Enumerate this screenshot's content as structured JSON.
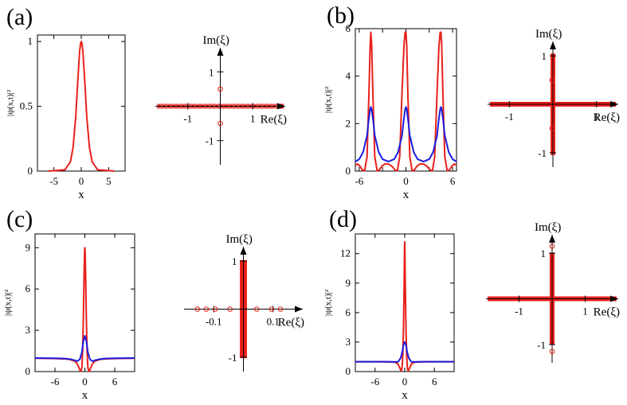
{
  "figure": {
    "ylabel": "|ψ(x,t)|²",
    "re_label": "Re(ξ)",
    "im_label": "Im(ξ)"
  },
  "chart_data": [
    {
      "type": "line",
      "panel": "(a)",
      "xlabel": "x",
      "ylabel": "|ψ(x,t)|²",
      "xlim": [
        -8,
        8
      ],
      "ylim": [
        0,
        1.05
      ],
      "xticks": [
        -5,
        0,
        5
      ],
      "xtick_labels": [
        "-5",
        "0",
        "5"
      ],
      "yticks": [
        0,
        0.5,
        1
      ],
      "ytick_labels": [
        "0",
        "0.5",
        "1"
      ],
      "series": [
        {
          "name": "red",
          "color": "#e8201a",
          "x": [
            -6,
            -3,
            -2,
            -1.5,
            -1,
            -0.7,
            -0.5,
            -0.3,
            -0.15,
            0,
            0.15,
            0.3,
            0.5,
            0.7,
            1,
            1.5,
            2,
            3,
            6
          ],
          "y": [
            0,
            0.01,
            0.07,
            0.18,
            0.42,
            0.65,
            0.79,
            0.92,
            0.98,
            1.0,
            0.98,
            0.92,
            0.79,
            0.65,
            0.42,
            0.18,
            0.07,
            0.01,
            0
          ]
        }
      ]
    },
    {
      "type": "scatter",
      "panel": "(a)",
      "xlabel": "Re(ξ)",
      "ylabel": "Im(ξ)",
      "xlim": [
        -2,
        2
      ],
      "ylim": [
        -1.7,
        1.7
      ],
      "xticks": [
        -1,
        1
      ],
      "xtick_labels": [
        "-1",
        "1"
      ],
      "yticks": [
        1,
        -1
      ],
      "ytick_labels": [
        "1",
        "-1"
      ],
      "band": {
        "axis": "real",
        "range": [
          -1.95,
          1.95
        ]
      },
      "points": [
        {
          "re": 0,
          "im": 0.5
        },
        {
          "re": 0,
          "im": -0.5
        }
      ]
    },
    {
      "type": "line",
      "panel": "(b)",
      "xlabel": "x",
      "ylabel": "|ψ(x,t)|²",
      "xlim": [
        -6.5,
        6.5
      ],
      "ylim": [
        0,
        6
      ],
      "xticks": [
        -6,
        -3,
        0,
        3,
        6
      ],
      "xtick_labels": [
        "-6",
        "",
        "0",
        "",
        "6"
      ],
      "yticks": [
        0,
        2,
        4,
        6
      ],
      "ytick_labels": [
        "0",
        "2",
        "4",
        "6"
      ],
      "series": [
        {
          "name": "red",
          "color": "#e8201a",
          "x": [
            -6.5,
            -6.2,
            -5.9,
            -5.6,
            -5.3,
            -5.0,
            -4.75,
            -4.6,
            -4.5,
            -4.4,
            -4.25,
            -4.0,
            -3.7,
            -3.4,
            -3.1,
            -2.7,
            -2.25,
            -1.8,
            -1.4,
            -1.1,
            -0.8,
            -0.5,
            -0.25,
            -0.1,
            0,
            0.1,
            0.25,
            0.5,
            0.8,
            1.1,
            1.4,
            1.8,
            2.25,
            2.7,
            3.1,
            3.4,
            3.7,
            4.0,
            4.25,
            4.4,
            4.5,
            4.6,
            4.75,
            5.0,
            5.3,
            5.6,
            5.9,
            6.2,
            6.5
          ],
          "y": [
            0.25,
            0.3,
            0.2,
            0.05,
            0.01,
            0.6,
            3.3,
            5.3,
            5.85,
            5.3,
            3.3,
            0.6,
            0.01,
            0.05,
            0.2,
            0.3,
            0.3,
            0.2,
            0.05,
            0.01,
            0.6,
            3.3,
            5.3,
            5.85,
            5.85,
            5.3,
            3.3,
            0.6,
            0.01,
            0.05,
            0.2,
            0.3,
            0.3,
            0.2,
            0.05,
            0.01,
            0.6,
            3.3,
            5.3,
            5.85,
            5.85,
            5.3,
            3.3,
            0.6,
            0.01,
            0.05,
            0.2,
            0.3,
            0.25
          ]
        },
        {
          "name": "blue",
          "color": "#1c1ce0",
          "x": [
            -6.5,
            -6.0,
            -5.5,
            -5.0,
            -4.8,
            -4.6,
            -4.5,
            -4.4,
            -4.2,
            -4.0,
            -3.5,
            -3.0,
            -2.25,
            -1.5,
            -1.0,
            -0.5,
            -0.3,
            -0.1,
            0,
            0.1,
            0.3,
            0.5,
            1.0,
            1.5,
            2.25,
            3.0,
            3.5,
            4.0,
            4.2,
            4.4,
            4.5,
            4.6,
            4.8,
            5.0,
            5.5,
            6.0,
            6.5
          ],
          "y": [
            0.4,
            0.5,
            0.8,
            1.5,
            2.1,
            2.6,
            2.7,
            2.6,
            2.1,
            1.5,
            0.8,
            0.5,
            0.4,
            0.5,
            0.8,
            1.5,
            2.1,
            2.6,
            2.7,
            2.6,
            2.1,
            1.5,
            0.8,
            0.5,
            0.4,
            0.5,
            0.8,
            1.5,
            2.1,
            2.6,
            2.7,
            2.6,
            2.1,
            1.5,
            0.8,
            0.5,
            0.4
          ]
        }
      ]
    },
    {
      "type": "scatter",
      "panel": "(b)",
      "xlabel": "Re(ξ)",
      "ylabel": "Im(ξ)",
      "xlim": [
        -1.5,
        1.5
      ],
      "ylim": [
        -1.3,
        1.3
      ],
      "xticks": [
        -1,
        1
      ],
      "xtick_labels": [
        "-1",
        "1"
      ],
      "yticks": [
        1,
        -1
      ],
      "ytick_labels": [
        "1",
        "-1"
      ],
      "bands": [
        {
          "axis": "real",
          "range": [
            -1.45,
            1.45
          ]
        },
        {
          "axis": "imag",
          "range": [
            -1.05,
            1.05
          ]
        }
      ],
      "points": [
        {
          "re": -0.02,
          "im": 0.5
        },
        {
          "re": -0.02,
          "im": -0.5
        }
      ]
    },
    {
      "type": "line",
      "panel": "(c)",
      "xlabel": "x",
      "ylabel": "|ψ(x,t)|²",
      "xlim": [
        -10,
        10
      ],
      "ylim": [
        0,
        10
      ],
      "xticks": [
        -6,
        0,
        6
      ],
      "xtick_labels": [
        "-6",
        "0",
        "6"
      ],
      "yticks": [
        0,
        3,
        6,
        9
      ],
      "ytick_labels": [
        "0",
        "3",
        "6",
        "9"
      ],
      "series": [
        {
          "name": "red",
          "color": "#e8201a",
          "x": [
            -10,
            -6,
            -4,
            -3,
            -2,
            -1.5,
            -1.2,
            -1.0,
            -0.8,
            -0.6,
            -0.45,
            -0.3,
            -0.15,
            -0.05,
            0,
            0.05,
            0.15,
            0.3,
            0.45,
            0.6,
            0.8,
            1.0,
            1.2,
            1.5,
            2,
            3,
            4,
            6,
            10
          ],
          "y": [
            0.97,
            0.95,
            0.92,
            0.88,
            0.75,
            0.55,
            0.3,
            0.1,
            0.02,
            0.3,
            1.5,
            3.8,
            7.2,
            8.8,
            9.0,
            8.8,
            7.2,
            3.8,
            1.5,
            0.3,
            0.02,
            0.1,
            0.3,
            0.55,
            0.75,
            0.88,
            0.92,
            0.95,
            0.97
          ]
        },
        {
          "name": "blue",
          "color": "#1c1ce0",
          "x": [
            -10,
            -6,
            -4,
            -3,
            -2,
            -1.5,
            -1.0,
            -0.6,
            -0.3,
            0,
            0.3,
            0.6,
            1.0,
            1.5,
            2,
            3,
            4,
            6,
            10
          ],
          "y": [
            0.98,
            0.97,
            0.95,
            0.9,
            0.82,
            0.75,
            0.9,
            1.4,
            2.2,
            2.6,
            2.2,
            1.4,
            0.9,
            0.75,
            0.82,
            0.9,
            0.95,
            0.97,
            0.98
          ]
        }
      ]
    },
    {
      "type": "scatter",
      "panel": "(c)",
      "xlabel": "Re(ξ)",
      "ylabel": "Im(ξ)",
      "xlim": [
        -0.2,
        0.2
      ],
      "ylim": [
        -1.3,
        1.3
      ],
      "xticks": [
        -0.1,
        0.1
      ],
      "xtick_labels": [
        "-0.1",
        "0.1"
      ],
      "yticks": [
        1,
        -1
      ],
      "ytick_labels": [
        "1",
        "-1"
      ],
      "band": {
        "axis": "imag",
        "range": [
          -1.02,
          1.02
        ],
        "halfwidth_re": 0.012
      },
      "points": [
        {
          "re": -0.155,
          "im": 0
        },
        {
          "re": -0.125,
          "im": 0
        },
        {
          "re": -0.095,
          "im": 0
        },
        {
          "re": -0.045,
          "im": 0
        },
        {
          "re": 0.045,
          "im": 0
        },
        {
          "re": 0.095,
          "im": 0
        },
        {
          "re": 0.125,
          "im": 0
        }
      ]
    },
    {
      "type": "line",
      "panel": "(d)",
      "xlabel": "x",
      "ylabel": "|ψ(x,t)|²",
      "xlim": [
        -10,
        10
      ],
      "ylim": [
        0,
        14
      ],
      "xticks": [
        -6,
        0,
        6
      ],
      "xtick_labels": [
        "-6",
        "0",
        "6"
      ],
      "yticks": [
        0,
        3,
        6,
        9,
        12
      ],
      "ytick_labels": [
        "0",
        "3",
        "6",
        "9",
        "12"
      ],
      "series": [
        {
          "name": "red",
          "color": "#e8201a",
          "x": [
            -10,
            -5,
            -3,
            -2,
            -1.4,
            -1.0,
            -0.75,
            -0.55,
            -0.4,
            -0.25,
            -0.12,
            -0.04,
            0,
            0.04,
            0.12,
            0.25,
            0.4,
            0.55,
            0.75,
            1.0,
            1.4,
            2,
            3,
            5,
            10
          ],
          "y": [
            1.0,
            1.0,
            0.98,
            0.95,
            0.8,
            0.4,
            0.05,
            0.3,
            1.5,
            4.2,
            9.0,
            12.6,
            13.2,
            12.6,
            9.0,
            4.2,
            1.5,
            0.3,
            0.05,
            0.4,
            0.8,
            0.95,
            0.98,
            1.0,
            1.0
          ]
        },
        {
          "name": "blue",
          "color": "#1c1ce0",
          "x": [
            -10,
            -5,
            -3,
            -2,
            -1.3,
            -0.8,
            -0.5,
            -0.25,
            0,
            0.25,
            0.5,
            0.8,
            1.3,
            2,
            3,
            5,
            10
          ],
          "y": [
            1.0,
            1.0,
            1.0,
            0.98,
            1.0,
            1.4,
            2.0,
            2.7,
            3.0,
            2.7,
            2.0,
            1.4,
            1.0,
            0.98,
            1.0,
            1.0,
            1.0
          ]
        }
      ]
    },
    {
      "type": "scatter",
      "panel": "(d)",
      "xlabel": "Re(ξ)",
      "ylabel": "Im(ξ)",
      "xlim": [
        -2,
        2
      ],
      "ylim": [
        -1.4,
        1.4
      ],
      "xticks": [
        -1,
        1
      ],
      "xtick_labels": [
        "-1",
        "1"
      ],
      "yticks": [
        1,
        -1
      ],
      "ytick_labels": [
        "1",
        "-1"
      ],
      "bands": [
        {
          "axis": "real",
          "range": [
            -1.95,
            1.95
          ]
        },
        {
          "axis": "imag",
          "range": [
            -1.0,
            1.0
          ]
        }
      ],
      "points": [
        {
          "re": 0,
          "im": 1.15
        },
        {
          "re": 0,
          "im": -1.15
        }
      ]
    }
  ]
}
